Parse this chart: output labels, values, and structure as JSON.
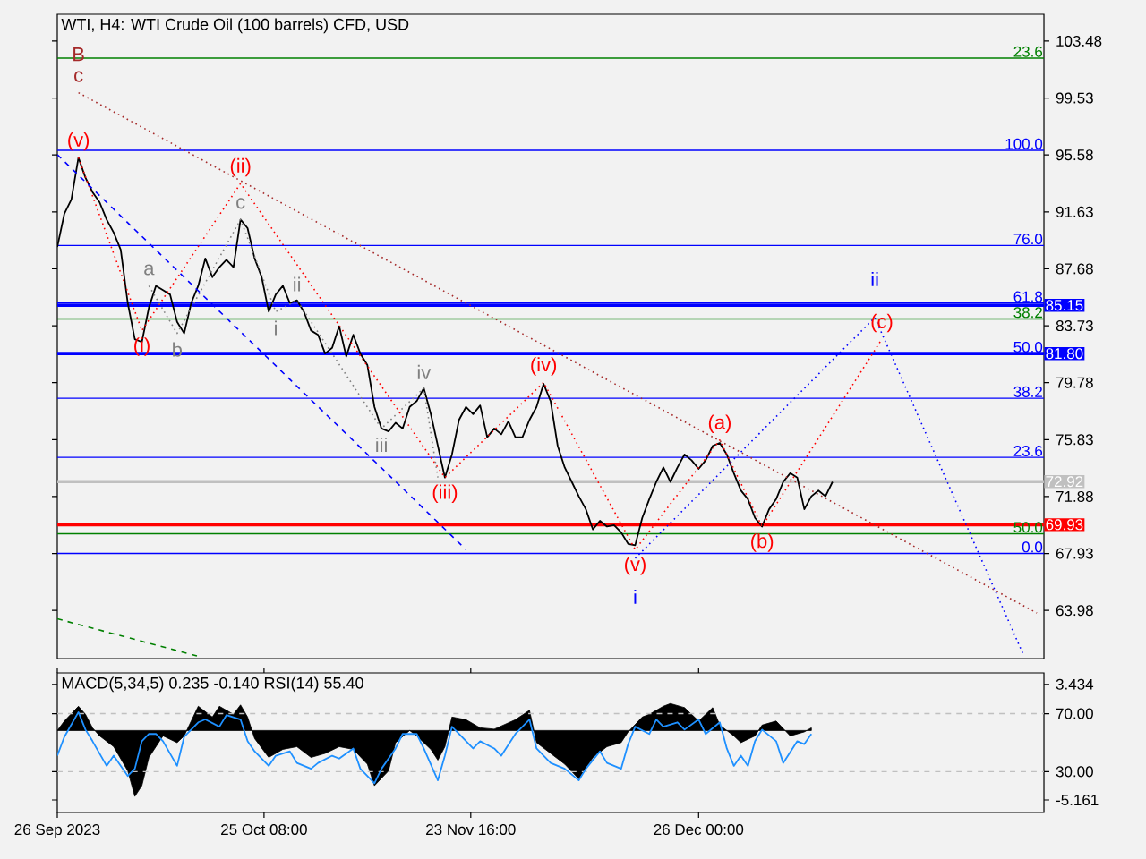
{
  "chart_data": [
    {
      "type": "line",
      "title": "WTI, H4:  WTI Crude Oil (100 barrels) CFD, USD",
      "xlim": [
        "2023-09-26",
        "2024-02-13"
      ],
      "ylim": [
        60.64,
        105.34
      ],
      "yticks": [
        103.48,
        99.53,
        95.58,
        91.63,
        87.68,
        83.73,
        79.78,
        75.83,
        71.88,
        67.93,
        63.98
      ],
      "tick_labels": "y",
      "series": [
        {
          "color": "#000000",
          "x": [
            "2023-09-26",
            "2023-09-27",
            "2023-09-28",
            "2023-09-29",
            "2023-09-30",
            "2023-10-01",
            "2023-10-02",
            "2023-10-03",
            "2023-10-04",
            "2023-10-05",
            "2023-10-06",
            "2023-10-07",
            "2023-10-08",
            "2023-10-09",
            "2023-10-10",
            "2023-10-11",
            "2023-10-12",
            "2023-10-13",
            "2023-10-14",
            "2023-10-15",
            "2023-10-16",
            "2023-10-17",
            "2023-10-18",
            "2023-10-19",
            "2023-10-20",
            "2023-10-21",
            "2023-10-22",
            "2023-10-23",
            "2023-10-24",
            "2023-10-25",
            "2023-10-26",
            "2023-10-27",
            "2023-10-28",
            "2023-10-29",
            "2023-10-30",
            "2023-10-31",
            "2023-11-01",
            "2023-11-02",
            "2023-11-03",
            "2023-11-04",
            "2023-11-05",
            "2023-11-06",
            "2023-11-07",
            "2023-11-08",
            "2023-11-09",
            "2023-11-10",
            "2023-11-11",
            "2023-11-12",
            "2023-11-13",
            "2023-11-14",
            "2023-11-15",
            "2023-11-16",
            "2023-11-17",
            "2023-11-18",
            "2023-11-19",
            "2023-11-20",
            "2023-11-21",
            "2023-11-22",
            "2023-11-23",
            "2023-11-24",
            "2023-11-25",
            "2023-11-26",
            "2023-11-27",
            "2023-11-28",
            "2023-11-29",
            "2023-11-30",
            "2023-12-01",
            "2023-12-02",
            "2023-12-03",
            "2023-12-04",
            "2023-12-05",
            "2023-12-06",
            "2023-12-07",
            "2023-12-08",
            "2023-12-09",
            "2023-12-10",
            "2023-12-11",
            "2023-12-12",
            "2023-12-13",
            "2023-12-14",
            "2023-12-15",
            "2023-12-16",
            "2023-12-17",
            "2023-12-18",
            "2023-12-19",
            "2023-12-20",
            "2023-12-21",
            "2023-12-22",
            "2023-12-23",
            "2023-12-24",
            "2023-12-25",
            "2023-12-26",
            "2023-12-27",
            "2023-12-28",
            "2023-12-29",
            "2023-12-30",
            "2023-12-31",
            "2024-01-01",
            "2024-01-02",
            "2024-01-03",
            "2024-01-04",
            "2024-01-05",
            "2024-01-06",
            "2024-01-07",
            "2024-01-08",
            "2024-01-09",
            "2024-01-10",
            "2024-01-11",
            "2024-01-12",
            "2024-01-13",
            "2024-01-14"
          ],
          "values": [
            89.2,
            91.5,
            92.5,
            95.4,
            94.0,
            93.0,
            92.3,
            91.1,
            90.2,
            89.0,
            85.3,
            82.8,
            82.6,
            85.0,
            86.5,
            86.2,
            85.9,
            84.0,
            83.2,
            85.3,
            86.5,
            88.4,
            87.1,
            87.8,
            88.3,
            87.8,
            91.1,
            90.5,
            88.4,
            87.1,
            84.7,
            85.9,
            86.5,
            85.3,
            85.5,
            84.7,
            83.4,
            83.1,
            81.8,
            82.2,
            83.7,
            81.6,
            83.1,
            81.8,
            81.0,
            78.1,
            76.6,
            76.4,
            77.0,
            76.6,
            78.1,
            78.5,
            79.4,
            77.6,
            75.4,
            73.2,
            74.8,
            77.2,
            78.1,
            77.6,
            78.2,
            76.0,
            76.6,
            76.2,
            77.1,
            76.0,
            76.0,
            77.2,
            78.1,
            79.7,
            78.5,
            75.4,
            73.9,
            72.9,
            71.9,
            71.0,
            69.6,
            70.2,
            69.8,
            69.9,
            69.4,
            68.6,
            68.5,
            70.4,
            71.7,
            72.9,
            73.9,
            72.9,
            73.9,
            74.8,
            74.4,
            73.8,
            74.4,
            75.4,
            75.6,
            74.8,
            73.5,
            72.3,
            71.7,
            70.4,
            69.8,
            71.0,
            71.7,
            72.9,
            73.5,
            73.2,
            71.0,
            71.9,
            72.3,
            71.9,
            72.9
          ]
        },
        {
          "type": "line",
          "color": "#ff0000",
          "line_style": "dotted",
          "x": [
            "2023-09-29",
            "2023-10-08",
            "2023-10-22",
            "2023-11-20",
            "2023-12-04",
            "2023-12-17",
            "2023-12-29",
            "2024-01-04",
            "2024-01-21"
          ],
          "values": [
            95.4,
            83.4,
            93.6,
            73.2,
            79.8,
            68.2,
            75.8,
            69.8,
            82.8
          ]
        },
        {
          "type": "line",
          "color": "#a52a2a",
          "line_style": "dotted",
          "x": [
            "2023-09-29",
            "2024-02-12"
          ],
          "values": [
            99.9,
            63.8
          ]
        },
        {
          "type": "line",
          "color": "#0000ff",
          "line_style": "dashed",
          "x": [
            "2023-09-26",
            "2023-11-23"
          ],
          "values": [
            95.6,
            68.2
          ]
        },
        {
          "type": "line",
          "color": "#0000ff",
          "line_style": "dotted",
          "x": [
            "2023-12-17",
            "2024-01-20",
            "2024-02-10"
          ],
          "values": [
            67.6,
            84.3,
            61.0
          ]
        },
        {
          "type": "line",
          "color": "#008000",
          "line_style": "dashed",
          "x": [
            "2023-09-26",
            "2023-10-16"
          ],
          "values": [
            63.4,
            60.8
          ]
        },
        {
          "type": "line",
          "color": "#808080",
          "line_style": "dotted",
          "x": [
            "2023-10-09",
            "2023-10-13",
            "2023-10-22",
            "2023-10-27",
            "2023-10-30",
            "2023-11-11",
            "2023-11-17",
            "2023-11-19"
          ],
          "values": [
            86.5,
            83.2,
            91.1,
            84.7,
            85.5,
            76.6,
            79.4,
            73.2
          ]
        }
      ],
      "ref_lines": [
        {
          "axis": "y",
          "value": 102.3,
          "color": "#008000"
        },
        {
          "axis": "y",
          "value": 95.9,
          "color": "#0000ff"
        },
        {
          "axis": "y",
          "value": 89.3,
          "color": "#0000ff"
        },
        {
          "axis": "y",
          "value": 85.3,
          "color": "#0000ff"
        },
        {
          "axis": "y",
          "value": 84.2,
          "color": "#008000"
        },
        {
          "axis": "y",
          "value": 78.7,
          "color": "#0000ff"
        },
        {
          "axis": "y",
          "value": 74.6,
          "color": "#0000ff"
        },
        {
          "axis": "y",
          "value": 69.3,
          "color": "#008000"
        },
        {
          "axis": "y",
          "value": 67.93,
          "color": "#0000ff"
        },
        {
          "axis": "y",
          "value": 85.15,
          "label": "85.15",
          "color": "#0000ff"
        },
        {
          "axis": "y",
          "value": 81.8,
          "label": "81.80",
          "color": "#0000ff"
        },
        {
          "axis": "y",
          "value": 72.92,
          "label": "72.92",
          "color": "#c0c0c0"
        },
        {
          "axis": "y",
          "value": 69.93,
          "label": "69.93",
          "color": "#ff0000"
        }
      ],
      "annotations": [
        {
          "text": "23.6",
          "x": "2024-02-13",
          "y": 102.3
        },
        {
          "text": "100.0",
          "x": "2024-02-13",
          "y": 95.9
        },
        {
          "text": "76.0",
          "x": "2024-02-13",
          "y": 89.3
        },
        {
          "text": "61.8",
          "x": "2024-02-13",
          "y": 85.3
        },
        {
          "text": "38.2",
          "x": "2024-02-13",
          "y": 84.2
        },
        {
          "text": "50.0",
          "x": "2024-02-13",
          "y": 81.8
        },
        {
          "text": "38.2",
          "x": "2024-02-13",
          "y": 78.7
        },
        {
          "text": "23.6",
          "x": "2024-02-13",
          "y": 74.6
        },
        {
          "text": "50.0",
          "x": "2024-02-13",
          "y": 69.3
        },
        {
          "text": "0.0",
          "x": "2024-02-13",
          "y": 67.93
        },
        {
          "text": "(v)",
          "x": "2023-09-29",
          "y": 95.4
        },
        {
          "text": "c",
          "x": "2023-09-29",
          "y": 99.9
        },
        {
          "text": "B",
          "x": "2023-09-29",
          "y": 99.9
        },
        {
          "text": "(ii)",
          "x": "2023-10-22",
          "y": 93.6
        },
        {
          "text": "c",
          "x": "2023-10-22",
          "y": 91.1
        },
        {
          "text": "a",
          "x": "2023-10-09",
          "y": 86.5
        },
        {
          "text": "ii",
          "x": "2023-10-30",
          "y": 85.5
        },
        {
          "text": "(i)",
          "x": "2023-10-08",
          "y": 83.4
        },
        {
          "text": "b",
          "x": "2023-10-13",
          "y": 83.2
        },
        {
          "text": "i",
          "x": "2023-10-27",
          "y": 84.7
        },
        {
          "text": "iv",
          "x": "2023-11-17",
          "y": 79.4
        },
        {
          "text": "(iv)",
          "x": "2023-12-04",
          "y": 79.8
        },
        {
          "text": "iii",
          "x": "2023-11-11",
          "y": 76.6
        },
        {
          "text": "(iii)",
          "x": "2023-11-20",
          "y": 73.2
        },
        {
          "text": "(a)",
          "x": "2023-12-29",
          "y": 75.8
        },
        {
          "text": "(c)",
          "x": "2024-01-21",
          "y": 82.8
        },
        {
          "text": "ii",
          "x": "2024-01-20",
          "y": 84.3
        },
        {
          "text": "(v)",
          "x": "2023-12-17",
          "y": 68.2
        },
        {
          "text": "i",
          "x": "2023-12-17",
          "y": 67.6
        },
        {
          "text": "(b)",
          "x": "2024-01-04",
          "y": 69.8
        }
      ]
    },
    {
      "type": "area",
      "title": "MACD(5,34,5) 0.235 -0.140 RSI(14) 55.40",
      "xlim": [
        "2023-09-26",
        "2024-02-13"
      ],
      "xticks": [
        {
          "value": "2023-09-26",
          "label": "26 Sep 2023"
        },
        {
          "value": "2023-10-25T08:00",
          "label": "25 Oct 08:00"
        },
        {
          "value": "2023-11-23T16:00",
          "label": "23 Nov 16:00"
        },
        {
          "value": "2023-12-26",
          "label": "26 Dec 00:00"
        }
      ],
      "ylim": [
        -6.09,
        4.28
      ],
      "yticks": [
        3.434,
        -5.161
      ],
      "y2lim": [
        1.85,
        98.1
      ],
      "y2ticks": [
        {
          "value": 70,
          "label": "70.00"
        },
        {
          "value": 30,
          "label": "30.00"
        }
      ],
      "series": [
        {
          "type": "area",
          "color": "#000000",
          "x": [
            "2023-09-26",
            "2023-09-27",
            "2023-09-29",
            "2023-09-30",
            "2023-10-01",
            "2023-10-02",
            "2023-10-04",
            "2023-10-06",
            "2023-10-07",
            "2023-10-08",
            "2023-10-09",
            "2023-10-11",
            "2023-10-13",
            "2023-10-14",
            "2023-10-15",
            "2023-10-16",
            "2023-10-18",
            "2023-10-19",
            "2023-10-21",
            "2023-10-22",
            "2023-10-23",
            "2023-10-24",
            "2023-10-26",
            "2023-10-28",
            "2023-10-30",
            "2023-11-01",
            "2023-11-03",
            "2023-11-05",
            "2023-11-07",
            "2023-11-09",
            "2023-11-10",
            "2023-11-12",
            "2023-11-13",
            "2023-11-15",
            "2023-11-16",
            "2023-11-18",
            "2023-11-19",
            "2023-11-20",
            "2023-11-21",
            "2023-11-23",
            "2023-11-25",
            "2023-11-27",
            "2023-11-30",
            "2023-12-02",
            "2023-12-03",
            "2023-12-05",
            "2023-12-07",
            "2023-12-09",
            "2023-12-11",
            "2023-12-13",
            "2023-12-15",
            "2023-12-16",
            "2023-12-18",
            "2023-12-19",
            "2023-12-21",
            "2023-12-22",
            "2023-12-24",
            "2023-12-26",
            "2023-12-28",
            "2023-12-29",
            "2023-12-31",
            "2024-01-01",
            "2024-01-03",
            "2024-01-04",
            "2024-01-06",
            "2024-01-08",
            "2024-01-10",
            "2024-01-11"
          ],
          "values": [
            0.0,
            0.7,
            1.8,
            1.2,
            0.2,
            -0.4,
            -1.2,
            -3.0,
            -4.9,
            -4.1,
            -2.0,
            -0.4,
            -0.9,
            -0.4,
            0.7,
            1.8,
            1.0,
            1.8,
            1.2,
            1.9,
            1.0,
            -0.6,
            -2.0,
            -1.4,
            -1.2,
            -2.0,
            -1.7,
            -1.2,
            -1.4,
            -2.5,
            -4.1,
            -3.0,
            -0.9,
            0.0,
            -0.4,
            -1.4,
            -2.2,
            -1.2,
            1.0,
            0.8,
            0.2,
            0.1,
            0.8,
            1.5,
            -0.9,
            -1.7,
            -2.5,
            -3.6,
            -2.0,
            -1.2,
            -0.9,
            -0.1,
            1.0,
            1.2,
            1.8,
            2.0,
            1.7,
            0.7,
            1.7,
            0.4,
            -0.4,
            -0.9,
            -0.4,
            0.4,
            0.7,
            -0.4,
            -0.1,
            0.2
          ]
        },
        {
          "type": "line",
          "axis": "y2",
          "color": "#1e90ff",
          "x": [
            "2023-09-26",
            "2023-09-27",
            "2023-09-29",
            "2023-09-30",
            "2023-10-01",
            "2023-10-03",
            "2023-10-04",
            "2023-10-06",
            "2023-10-07",
            "2023-10-08",
            "2023-10-09",
            "2023-10-10",
            "2023-10-11",
            "2023-10-13",
            "2023-10-14",
            "2023-10-16",
            "2023-10-17",
            "2023-10-19",
            "2023-10-20",
            "2023-10-22",
            "2023-10-23",
            "2023-10-24",
            "2023-10-26",
            "2023-10-27",
            "2023-10-29",
            "2023-10-30",
            "2023-11-01",
            "2023-11-02",
            "2023-11-04",
            "2023-11-05",
            "2023-11-07",
            "2023-11-08",
            "2023-11-10",
            "2023-11-11",
            "2023-11-13",
            "2023-11-14",
            "2023-11-16",
            "2023-11-17",
            "2023-11-19",
            "2023-11-20",
            "2023-11-21",
            "2023-11-22",
            "2023-11-24",
            "2023-11-25",
            "2023-11-27",
            "2023-11-28",
            "2023-11-30",
            "2023-12-01",
            "2023-12-02",
            "2023-12-03",
            "2023-12-05",
            "2023-12-06",
            "2023-12-07",
            "2023-12-09",
            "2023-12-10",
            "2023-12-12",
            "2023-12-13",
            "2023-12-15",
            "2023-12-16",
            "2023-12-17",
            "2023-12-19",
            "2023-12-20",
            "2023-12-21",
            "2023-12-23",
            "2023-12-24",
            "2023-12-26",
            "2023-12-27",
            "2023-12-29",
            "2023-12-30",
            "2023-12-31",
            "2024-01-01",
            "2024-01-02",
            "2024-01-03",
            "2024-01-04",
            "2024-01-06",
            "2024-01-07",
            "2024-01-09",
            "2024-01-10",
            "2024-01-11"
          ],
          "values": [
            41,
            54,
            71,
            59,
            51,
            34,
            41,
            27,
            32,
            51,
            56,
            56,
            51,
            34,
            54,
            64,
            66,
            61,
            69,
            66,
            51,
            44,
            34,
            41,
            44,
            36,
            32,
            36,
            41,
            39,
            46,
            32,
            22,
            32,
            46,
            56,
            56,
            46,
            24,
            41,
            61,
            56,
            46,
            51,
            46,
            41,
            56,
            61,
            66,
            46,
            36,
            34,
            32,
            24,
            32,
            44,
            36,
            32,
            49,
            61,
            56,
            66,
            61,
            64,
            59,
            66,
            56,
            64,
            46,
            34,
            41,
            34,
            51,
            59,
            51,
            36,
            51,
            49,
            56
          ]
        }
      ],
      "ref_lines": [
        {
          "axis": "y2",
          "value": 70,
          "color": "#c0c0c0",
          "line_style": "dashed"
        },
        {
          "axis": "y2",
          "value": 30,
          "color": "#c0c0c0",
          "line_style": "dashed"
        }
      ]
    }
  ]
}
